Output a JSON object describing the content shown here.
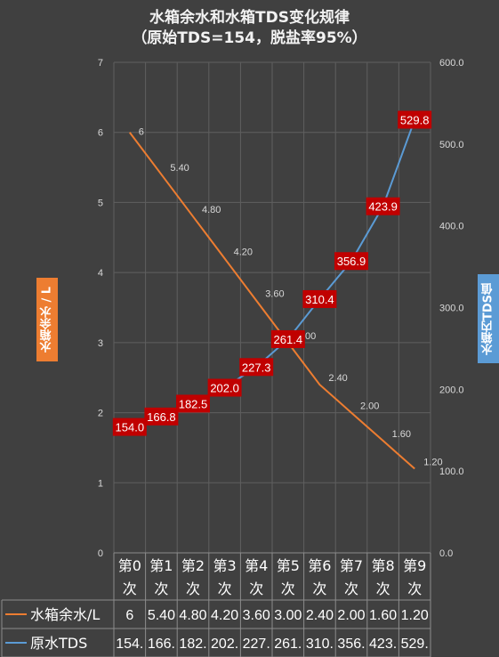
{
  "chart_data": {
    "type": "line",
    "title_line1": "水箱余水和水箱TDS变化规律",
    "title_line2": "（原始TDS=154，脱盐率95%）",
    "categories": [
      [
        "第0",
        "次"
      ],
      [
        "第1",
        "次"
      ],
      [
        "第2",
        "次"
      ],
      [
        "第3",
        "次"
      ],
      [
        "第4",
        "次"
      ],
      [
        "第5",
        "次"
      ],
      [
        "第6",
        "次"
      ],
      [
        "第7",
        "次"
      ],
      [
        "第8",
        "次"
      ],
      [
        "第9",
        "次"
      ]
    ],
    "ylabel_left": "水箱余水 / L",
    "ylabel_right": "水箱内TDS值",
    "y_left_ticks": [
      "0",
      "1",
      "2",
      "3",
      "4",
      "5",
      "6",
      "7"
    ],
    "y_left_lim": [
      0,
      7
    ],
    "y_right_ticks": [
      "0.0",
      "100.0",
      "200.0",
      "300.0",
      "400.0",
      "500.0",
      "600.0"
    ],
    "y_right_lim": [
      0,
      600
    ],
    "grid": true,
    "series": [
      {
        "name": "水箱余水/L",
        "axis": "left",
        "color": "#ed7d31",
        "values": [
          6,
          5.4,
          4.8,
          4.2,
          3.6,
          3.0,
          2.4,
          2.0,
          1.6,
          1.2
        ],
        "labels": [
          "6",
          "5.40",
          "4.80",
          "4.20",
          "3.60",
          "3.00",
          "2.40",
          "2.00",
          "1.60",
          "1.20"
        ],
        "table": [
          "6",
          "5.40",
          "4.80",
          "4.20",
          "3.60",
          "3.00",
          "2.40",
          "2.00",
          "1.60",
          "1.20"
        ]
      },
      {
        "name": "原水TDS",
        "axis": "right",
        "color": "#5b9bd5",
        "label_bg": "#c00000",
        "values": [
          154.0,
          166.8,
          182.5,
          202.0,
          227.3,
          261.4,
          310.4,
          356.9,
          423.9,
          529.8
        ],
        "labels": [
          "154.0",
          "166.8",
          "182.5",
          "202.0",
          "227.3",
          "261.4",
          "310.4",
          "356.9",
          "423.9",
          "529.8"
        ],
        "table": [
          "154.",
          "166.",
          "182.",
          "202.",
          "227.",
          "261.",
          "310.",
          "356.",
          "423.",
          "529."
        ]
      }
    ]
  }
}
